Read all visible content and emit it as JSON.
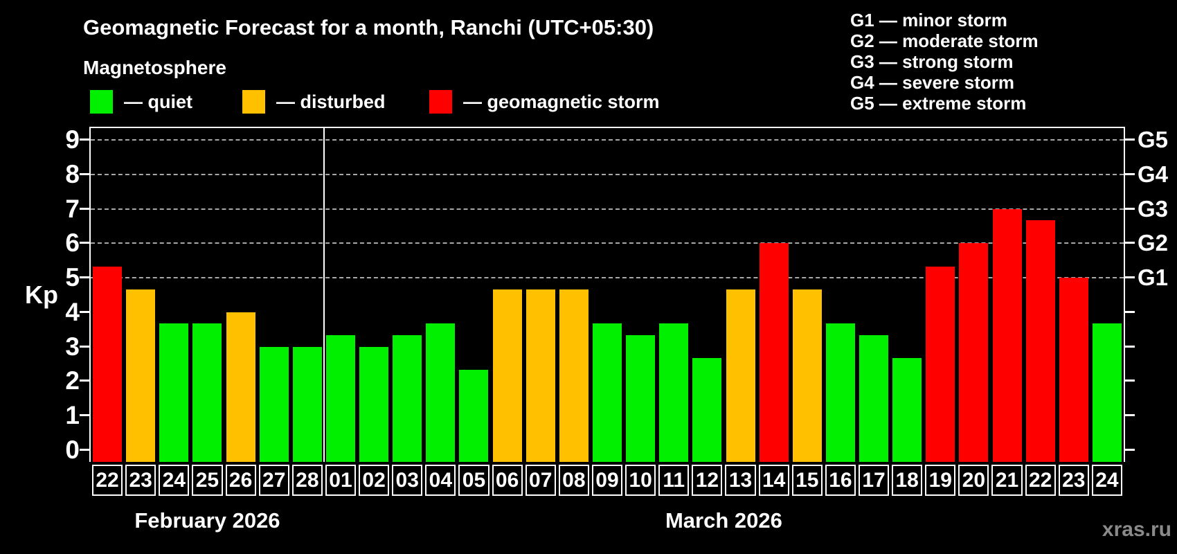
{
  "header": {
    "title": "Geomagnetic Forecast for a month, Ranchi (UTC+05:30)",
    "subtitle": "Magnetosphere"
  },
  "legend": [
    {
      "key": "quiet",
      "label": "— quiet"
    },
    {
      "key": "disturbed",
      "label": "— disturbed"
    },
    {
      "key": "storm",
      "label": "— geomagnetic storm"
    }
  ],
  "g_scale_legend": [
    "G1 — minor storm",
    "G2 — moderate storm",
    "G3 — strong storm",
    "G4 — severe storm",
    "G5 — extreme storm"
  ],
  "y_axis": {
    "label": "Kp",
    "ticks": [
      0,
      1,
      2,
      3,
      4,
      5,
      6,
      7,
      8,
      9
    ]
  },
  "right_axis": {
    "labels": [
      {
        "kp": 5,
        "text": "G1"
      },
      {
        "kp": 6,
        "text": "G2"
      },
      {
        "kp": 7,
        "text": "G3"
      },
      {
        "kp": 8,
        "text": "G4"
      },
      {
        "kp": 9,
        "text": "G5"
      }
    ]
  },
  "watermark": "xras.ru",
  "colors": {
    "quiet": "#00f000",
    "disturbed": "#ffc000",
    "storm": "#ff0000",
    "grid": "#a8a8a8",
    "frame": "#ffffff"
  },
  "chart_data": {
    "type": "bar",
    "title": "Geomagnetic Forecast for a month, Ranchi (UTC+05:30)",
    "ylabel": "Kp",
    "ylim": [
      0,
      9
    ],
    "grid_levels": [
      5,
      6,
      7,
      8,
      9
    ],
    "legend_position": "top",
    "months": [
      {
        "label": "February 2026",
        "days": [
          {
            "day": "22",
            "kp": 5.33,
            "level": "storm"
          },
          {
            "day": "23",
            "kp": 4.67,
            "level": "disturbed"
          },
          {
            "day": "24",
            "kp": 3.67,
            "level": "quiet"
          },
          {
            "day": "25",
            "kp": 3.67,
            "level": "quiet"
          },
          {
            "day": "26",
            "kp": 4.0,
            "level": "disturbed"
          },
          {
            "day": "27",
            "kp": 3.0,
            "level": "quiet"
          },
          {
            "day": "28",
            "kp": 3.0,
            "level": "quiet"
          }
        ]
      },
      {
        "label": "March 2026",
        "days": [
          {
            "day": "01",
            "kp": 3.33,
            "level": "quiet"
          },
          {
            "day": "02",
            "kp": 3.0,
            "level": "quiet"
          },
          {
            "day": "03",
            "kp": 3.33,
            "level": "quiet"
          },
          {
            "day": "04",
            "kp": 3.67,
            "level": "quiet"
          },
          {
            "day": "05",
            "kp": 2.33,
            "level": "quiet"
          },
          {
            "day": "06",
            "kp": 4.67,
            "level": "disturbed"
          },
          {
            "day": "07",
            "kp": 4.67,
            "level": "disturbed"
          },
          {
            "day": "08",
            "kp": 4.67,
            "level": "disturbed"
          },
          {
            "day": "09",
            "kp": 3.67,
            "level": "quiet"
          },
          {
            "day": "10",
            "kp": 3.33,
            "level": "quiet"
          },
          {
            "day": "11",
            "kp": 3.67,
            "level": "quiet"
          },
          {
            "day": "12",
            "kp": 2.67,
            "level": "quiet"
          },
          {
            "day": "13",
            "kp": 4.67,
            "level": "disturbed"
          },
          {
            "day": "14",
            "kp": 6.0,
            "level": "storm"
          },
          {
            "day": "15",
            "kp": 4.67,
            "level": "disturbed"
          },
          {
            "day": "16",
            "kp": 3.67,
            "level": "quiet"
          },
          {
            "day": "17",
            "kp": 3.33,
            "level": "quiet"
          },
          {
            "day": "18",
            "kp": 2.67,
            "level": "quiet"
          },
          {
            "day": "19",
            "kp": 5.33,
            "level": "storm"
          },
          {
            "day": "20",
            "kp": 6.0,
            "level": "storm"
          },
          {
            "day": "21",
            "kp": 7.0,
            "level": "storm"
          },
          {
            "day": "22",
            "kp": 6.67,
            "level": "storm"
          },
          {
            "day": "23",
            "kp": 5.0,
            "level": "storm"
          },
          {
            "day": "24",
            "kp": 3.67,
            "level": "quiet"
          }
        ]
      }
    ]
  }
}
